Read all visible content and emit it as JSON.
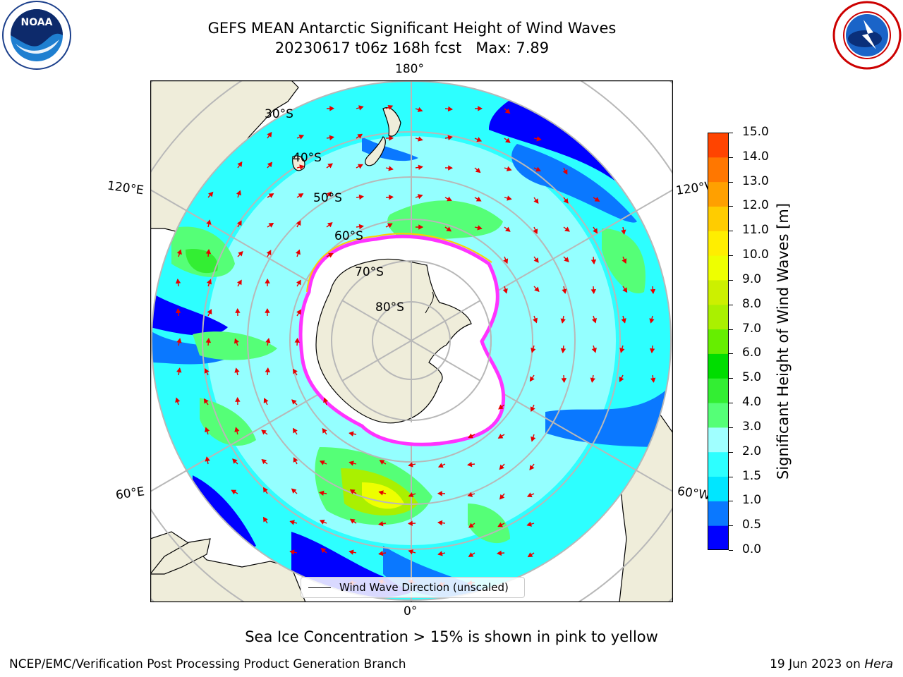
{
  "title": {
    "line1": "GEFS MEAN Antarctic Significant Height of Wind Waves",
    "line2": "20230617 t06z 168h fcst   Max: 7.89"
  },
  "logos": {
    "noaa": {
      "text": "NOAA",
      "ring_text": "NATIONAL OCEANIC AND ATMOSPHERIC ADMINISTRATION · U.S. DEPARTMENT OF COMMERCE"
    },
    "nws": {
      "ring_text": "NATIONAL WEATHER SERVICE"
    }
  },
  "map": {
    "projection": "south-polar-stereographic",
    "longitude_labels": {
      "top": "180°",
      "bottom": "0°",
      "left_upper": "120°E",
      "left_lower": "60°E",
      "right_upper": "120°W",
      "right_lower": "60°W"
    },
    "latitude_labels": [
      "30°S",
      "40°S",
      "50°S",
      "60°S",
      "70°S",
      "80°S"
    ],
    "colors": {
      "land": "#efedda",
      "ocean_edge": "#ffffff",
      "grid": "#b8b8b8",
      "arrow": "#e60000",
      "ice": "#ff33ff"
    },
    "legend": {
      "label": "Wind Wave Direction (unscaled)"
    }
  },
  "colorbar": {
    "label": "Significant Height of Wind Waves [m]",
    "ticks": [
      "0.0",
      "0.5",
      "1.0",
      "1.5",
      "2.0",
      "3.0",
      "4.0",
      "5.0",
      "6.0",
      "7.0",
      "8.0",
      "9.0",
      "10.0",
      "11.0",
      "12.0",
      "13.0",
      "14.0",
      "15.0"
    ],
    "colors": [
      "#0000ff",
      "#0a78ff",
      "#00e6ff",
      "#2dffff",
      "#a0ffff",
      "#55ff77",
      "#33ee33",
      "#00dd00",
      "#66ee00",
      "#aaf000",
      "#ccf000",
      "#eeff00",
      "#ffee00",
      "#ffcc00",
      "#ffa000",
      "#ff7700",
      "#ff4400"
    ]
  },
  "caption": "Sea Ice Concentration > 15% is shown in pink to yellow",
  "footer": {
    "left": "NCEP/EMC/Verification Post Processing Product Generation Branch",
    "right_date": "19 Jun 2023 on ",
    "right_host": "Hera"
  }
}
